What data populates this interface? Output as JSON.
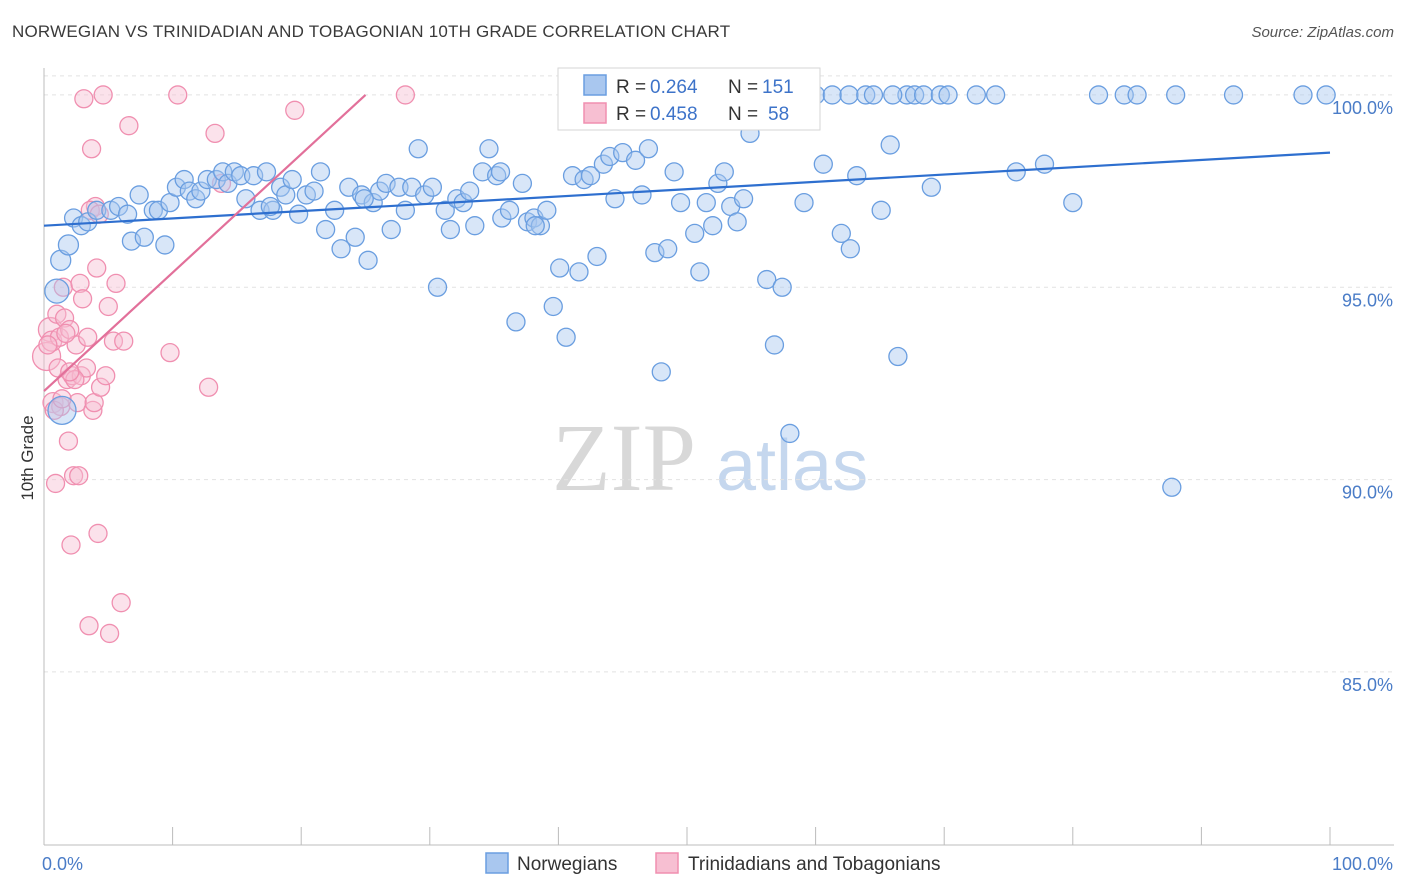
{
  "header": {
    "title": "NORWEGIAN VS TRINIDADIAN AND TOBAGONIAN 10TH GRADE CORRELATION CHART",
    "source": "Source: ZipAtlas.com"
  },
  "watermark": {
    "zip": "ZIP",
    "atlas": "atlas"
  },
  "colors": {
    "blue": "#6a9ee0",
    "blue_fill": "#a9c7ef",
    "blue_line": "#2e6fcf",
    "pink": "#f08fb0",
    "pink_fill": "#f7bfd2",
    "pink_line": "#e2709a",
    "axis_text": "#4a7cc7"
  },
  "legend": {
    "blue": {
      "r_label": "R = ",
      "r_value": "0.264",
      "n_label": "N = ",
      "n_value": "151"
    },
    "pink": {
      "r_label": "R = ",
      "r_value": "0.458",
      "n_label": "N = ",
      "n_value": "58"
    }
  },
  "bottom_legend": {
    "blue_label": "Norwegians",
    "pink_label": "Trinidadians and Tobagonians"
  },
  "chart_data": {
    "type": "scatter",
    "title": "NORWEGIAN VS TRINIDADIAN AND TOBAGONIAN 10TH GRADE CORRELATION CHART",
    "xlabel": "",
    "ylabel": "10th Grade",
    "xlim": [
      0,
      100
    ],
    "ylim": [
      80.5,
      100.7
    ],
    "x_tick_labels": [
      "0.0%",
      "100.0%"
    ],
    "y_ticks": [
      85,
      90,
      95,
      100
    ],
    "y_tick_labels": [
      "85.0%",
      "90.0%",
      "95.0%",
      "100.0%"
    ],
    "grid": true,
    "legend_position": "top-center",
    "series": [
      {
        "name": "Norwegians",
        "R": 0.264,
        "N": 151,
        "trend": {
          "x": [
            0,
            100
          ],
          "y": [
            96.6,
            98.5
          ]
        },
        "points": [
          [
            1.4,
            91.8,
            14
          ],
          [
            1.0,
            94.9,
            12
          ],
          [
            1.3,
            95.7,
            10
          ],
          [
            1.9,
            96.1,
            10
          ],
          [
            2.3,
            96.8,
            9
          ],
          [
            2.9,
            96.6,
            9
          ],
          [
            3.4,
            96.7,
            9
          ],
          [
            4.1,
            97.0,
            9
          ],
          [
            5.2,
            97.0,
            9
          ],
          [
            5.8,
            97.1,
            9
          ],
          [
            6.5,
            96.9,
            9
          ],
          [
            6.8,
            96.2,
            9
          ],
          [
            7.4,
            97.4,
            9
          ],
          [
            7.8,
            96.3,
            9
          ],
          [
            8.5,
            97.0,
            9
          ],
          [
            8.9,
            97.0,
            9
          ],
          [
            9.4,
            96.1,
            9
          ],
          [
            9.8,
            97.2,
            9
          ],
          [
            10.3,
            97.6,
            9
          ],
          [
            10.9,
            97.8,
            9
          ],
          [
            11.3,
            97.5,
            9
          ],
          [
            11.8,
            97.3,
            9
          ],
          [
            12.2,
            97.5,
            9
          ],
          [
            12.7,
            97.8,
            9
          ],
          [
            13.4,
            97.8,
            9
          ],
          [
            13.9,
            98.0,
            9
          ],
          [
            14.3,
            97.7,
            9
          ],
          [
            14.8,
            98.0,
            9
          ],
          [
            15.3,
            97.9,
            9
          ],
          [
            15.7,
            97.3,
            9
          ],
          [
            16.3,
            97.9,
            9
          ],
          [
            16.8,
            97.0,
            9
          ],
          [
            17.3,
            98.0,
            9
          ],
          [
            17.8,
            97.0,
            9
          ],
          [
            18.4,
            97.6,
            9
          ],
          [
            18.8,
            97.4,
            9
          ],
          [
            19.3,
            97.8,
            9
          ],
          [
            19.8,
            96.9,
            9
          ],
          [
            20.4,
            97.4,
            9
          ],
          [
            21.0,
            97.5,
            9
          ],
          [
            21.5,
            98.0,
            9
          ],
          [
            21.9,
            96.5,
            9
          ],
          [
            22.6,
            97.0,
            9
          ],
          [
            23.1,
            96.0,
            9
          ],
          [
            23.7,
            97.6,
            9
          ],
          [
            24.2,
            96.3,
            9
          ],
          [
            24.7,
            97.4,
            9
          ],
          [
            25.2,
            95.7,
            9
          ],
          [
            25.6,
            97.2,
            9
          ],
          [
            26.1,
            97.5,
            9
          ],
          [
            26.6,
            97.7,
            9
          ],
          [
            27.0,
            96.5,
            9
          ],
          [
            27.6,
            97.6,
            9
          ],
          [
            28.1,
            97.0,
            9
          ],
          [
            28.6,
            97.6,
            9
          ],
          [
            29.1,
            98.6,
            9
          ],
          [
            29.6,
            97.4,
            9
          ],
          [
            30.2,
            97.6,
            9
          ],
          [
            30.6,
            95.0,
            9
          ],
          [
            31.2,
            97.0,
            9
          ],
          [
            31.6,
            96.5,
            9
          ],
          [
            32.1,
            97.3,
            9
          ],
          [
            32.6,
            97.2,
            9
          ],
          [
            33.1,
            97.5,
            9
          ],
          [
            33.5,
            96.6,
            9
          ],
          [
            34.1,
            98.0,
            9
          ],
          [
            34.6,
            98.6,
            9
          ],
          [
            35.2,
            97.9,
            9
          ],
          [
            35.6,
            96.8,
            9
          ],
          [
            36.2,
            97.0,
            9
          ],
          [
            36.7,
            94.1,
            9
          ],
          [
            37.2,
            97.7,
            9
          ],
          [
            37.6,
            96.7,
            9
          ],
          [
            38.1,
            96.8,
            9
          ],
          [
            38.6,
            96.6,
            9
          ],
          [
            39.1,
            97.0,
            9
          ],
          [
            39.6,
            94.5,
            9
          ],
          [
            40.1,
            95.5,
            9
          ],
          [
            40.6,
            93.7,
            9
          ],
          [
            41.1,
            97.9,
            9
          ],
          [
            41.6,
            95.4,
            9
          ],
          [
            42.0,
            97.8,
            9
          ],
          [
            42.5,
            97.9,
            9
          ],
          [
            43.0,
            95.8,
            9
          ],
          [
            43.5,
            98.2,
            9
          ],
          [
            44.0,
            98.4,
            9
          ],
          [
            44.4,
            97.3,
            9
          ],
          [
            45.0,
            98.5,
            9
          ],
          [
            45.5,
            99.5,
            9
          ],
          [
            46.0,
            98.3,
            9
          ],
          [
            46.5,
            97.4,
            9
          ],
          [
            47.0,
            98.6,
            9
          ],
          [
            47.5,
            95.9,
            9
          ],
          [
            48.0,
            92.8,
            9
          ],
          [
            48.5,
            96.0,
            9
          ],
          [
            49.0,
            98.0,
            9
          ],
          [
            49.5,
            97.2,
            9
          ],
          [
            50.0,
            99.8,
            9
          ],
          [
            50.6,
            96.4,
            9
          ],
          [
            51.0,
            95.4,
            9
          ],
          [
            51.5,
            97.2,
            9
          ],
          [
            52.0,
            96.6,
            9
          ],
          [
            52.4,
            97.7,
            9
          ],
          [
            52.9,
            98.0,
            9
          ],
          [
            53.4,
            97.1,
            9
          ],
          [
            53.9,
            96.7,
            9
          ],
          [
            54.4,
            97.3,
            9
          ],
          [
            54.9,
            99.0,
            9
          ],
          [
            56.2,
            95.2,
            9
          ],
          [
            56.8,
            93.5,
            9
          ],
          [
            57.4,
            95.0,
            9
          ],
          [
            58.0,
            91.2,
            9
          ],
          [
            58.5,
            100.0,
            9
          ],
          [
            59.1,
            97.2,
            9
          ],
          [
            60.0,
            100.0,
            9
          ],
          [
            60.6,
            98.2,
            9
          ],
          [
            61.3,
            100.0,
            9
          ],
          [
            62.0,
            96.4,
            9
          ],
          [
            62.6,
            100.0,
            9
          ],
          [
            63.2,
            97.9,
            9
          ],
          [
            63.9,
            100.0,
            9
          ],
          [
            64.5,
            100.0,
            9
          ],
          [
            65.1,
            97.0,
            9
          ],
          [
            65.8,
            98.7,
            9
          ],
          [
            66.4,
            93.2,
            9
          ],
          [
            67.1,
            100.0,
            9
          ],
          [
            67.7,
            100.0,
            9
          ],
          [
            68.4,
            100.0,
            9
          ],
          [
            69.0,
            97.6,
            9
          ],
          [
            69.7,
            100.0,
            9
          ],
          [
            70.3,
            100.0,
            9
          ],
          [
            72.5,
            100.0,
            9
          ],
          [
            75.6,
            98.0,
            9
          ],
          [
            77.8,
            98.2,
            9
          ],
          [
            80.0,
            97.2,
            9
          ],
          [
            82.0,
            100.0,
            9
          ],
          [
            84.0,
            100.0,
            9
          ],
          [
            85.0,
            100.0,
            9
          ],
          [
            87.7,
            89.8,
            9
          ],
          [
            88.0,
            100.0,
            9
          ],
          [
            92.5,
            100.0,
            9
          ],
          [
            97.9,
            100.0,
            9
          ],
          [
            99.7,
            100.0,
            9
          ],
          [
            38.2,
            96.6,
            9
          ],
          [
            62.7,
            96.0,
            9
          ],
          [
            17.6,
            97.1,
            9
          ],
          [
            24.9,
            97.3,
            9
          ],
          [
            35.5,
            98.0,
            9
          ],
          [
            56.0,
            100.0,
            9
          ],
          [
            66.0,
            100.0,
            9
          ],
          [
            74.0,
            100.0,
            9
          ]
        ]
      },
      {
        "name": "Trinidadians and Tobagonians",
        "R": 0.458,
        "N": 58,
        "trend": {
          "x": [
            0,
            25
          ],
          "y": [
            92.3,
            100.0
          ]
        },
        "points": [
          [
            0.2,
            93.2,
            14
          ],
          [
            0.5,
            93.9,
            12
          ],
          [
            0.6,
            93.6,
            10
          ],
          [
            0.7,
            92.0,
            10
          ],
          [
            0.9,
            89.9,
            9
          ],
          [
            1.0,
            94.3,
            9
          ],
          [
            1.2,
            93.7,
            9
          ],
          [
            1.3,
            91.9,
            9
          ],
          [
            1.5,
            95.0,
            9
          ],
          [
            1.6,
            94.2,
            9
          ],
          [
            1.8,
            92.6,
            9
          ],
          [
            1.9,
            91.0,
            9
          ],
          [
            2.0,
            93.9,
            9
          ],
          [
            2.1,
            88.3,
            9
          ],
          [
            2.2,
            92.7,
            9
          ],
          [
            2.3,
            90.1,
            9
          ],
          [
            2.5,
            93.5,
            9
          ],
          [
            2.6,
            92.0,
            9
          ],
          [
            2.7,
            90.1,
            9
          ],
          [
            2.8,
            95.1,
            9
          ],
          [
            2.9,
            92.7,
            9
          ],
          [
            3.0,
            94.7,
            9
          ],
          [
            3.1,
            99.9,
            9
          ],
          [
            3.3,
            92.9,
            9
          ],
          [
            3.4,
            93.7,
            9
          ],
          [
            3.5,
            86.2,
            9
          ],
          [
            3.7,
            98.6,
            9
          ],
          [
            3.8,
            91.8,
            9
          ],
          [
            3.9,
            92.0,
            9
          ],
          [
            4.0,
            97.1,
            9
          ],
          [
            4.1,
            95.5,
            9
          ],
          [
            4.2,
            88.6,
            9
          ],
          [
            4.4,
            92.4,
            9
          ],
          [
            4.6,
            100.0,
            9
          ],
          [
            4.8,
            92.7,
            9
          ],
          [
            5.0,
            94.5,
            9
          ],
          [
            5.1,
            86.0,
            9
          ],
          [
            5.4,
            93.6,
            9
          ],
          [
            5.6,
            95.1,
            9
          ],
          [
            6.0,
            86.8,
            9
          ],
          [
            6.2,
            93.6,
            9
          ],
          [
            6.6,
            99.2,
            9
          ],
          [
            9.8,
            93.3,
            9
          ],
          [
            10.4,
            100.0,
            9
          ],
          [
            12.8,
            92.4,
            9
          ],
          [
            13.3,
            99.0,
            9
          ],
          [
            13.8,
            97.7,
            9
          ],
          [
            19.5,
            99.6,
            9
          ],
          [
            28.1,
            100.0,
            9
          ],
          [
            0.3,
            93.5,
            9
          ],
          [
            0.8,
            91.8,
            9
          ],
          [
            1.1,
            92.9,
            9
          ],
          [
            1.7,
            93.8,
            9
          ],
          [
            2.4,
            92.6,
            9
          ],
          [
            3.6,
            97.0,
            9
          ],
          [
            4.3,
            96.9,
            9
          ],
          [
            1.4,
            92.1,
            9
          ],
          [
            2.0,
            92.8,
            9
          ]
        ]
      }
    ]
  }
}
